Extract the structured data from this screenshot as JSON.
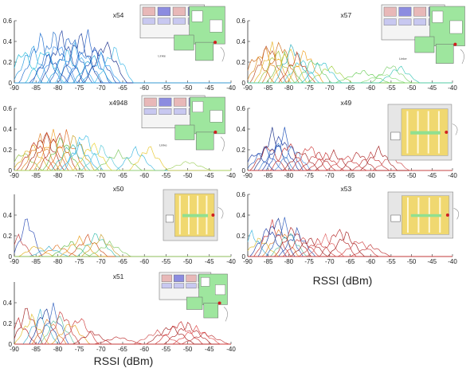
{
  "figure": {
    "xlabel_right": "RSSI (dBm)",
    "xlabel_left": "RSSI (dBm)"
  },
  "chart_data": [
    {
      "type": "line",
      "title": "x54",
      "xlim": [
        -90,
        -40
      ],
      "ylim": [
        0,
        0.6
      ],
      "x_ticks": [
        -90,
        -85,
        -80,
        -75,
        -70,
        -65,
        -60,
        -55,
        -50,
        -45,
        -40
      ],
      "y_ticks": [
        0,
        0.2,
        0.4,
        0.6
      ],
      "grid": false,
      "series": [
        {
          "peak": -88,
          "height": 0.36,
          "width": 2.0,
          "color": "#1fb8d8"
        },
        {
          "peak": -86,
          "height": 0.4,
          "width": 2.0,
          "color": "#2a9be0"
        },
        {
          "peak": -84,
          "height": 0.5,
          "width": 2.2,
          "color": "#1f6fd0"
        },
        {
          "peak": -83,
          "height": 0.38,
          "width": 2.0,
          "color": "#33c0e0"
        },
        {
          "peak": -82,
          "height": 0.3,
          "width": 2.0,
          "color": "#1850b8"
        },
        {
          "peak": -81,
          "height": 0.53,
          "width": 2.2,
          "color": "#2470cc"
        },
        {
          "peak": -80,
          "height": 0.45,
          "width": 2.0,
          "color": "#3a8ee8"
        },
        {
          "peak": -79,
          "height": 0.53,
          "width": 2.2,
          "color": "#1f40a0"
        },
        {
          "peak": -78,
          "height": 0.35,
          "width": 2.0,
          "color": "#26a8e0"
        },
        {
          "peak": -77,
          "height": 0.53,
          "width": 2.2,
          "color": "#1e5ec0"
        },
        {
          "peak": -76,
          "height": 0.4,
          "width": 2.0,
          "color": "#3fb0f0"
        },
        {
          "peak": -75,
          "height": 0.53,
          "width": 2.2,
          "color": "#1a3d9a"
        },
        {
          "peak": -74,
          "height": 0.35,
          "width": 2.0,
          "color": "#2f84dc"
        },
        {
          "peak": -73,
          "height": 0.52,
          "width": 2.2,
          "color": "#2060c8"
        },
        {
          "peak": -72,
          "height": 0.3,
          "width": 2.0,
          "color": "#1da0d8"
        },
        {
          "peak": -71,
          "height": 0.4,
          "width": 2.0,
          "color": "#1c48b0"
        },
        {
          "peak": -70,
          "height": 0.3,
          "width": 2.0,
          "color": "#30a0f0"
        },
        {
          "peak": -69,
          "height": 0.45,
          "width": 2.2,
          "color": "#1a2e8a"
        },
        {
          "peak": -67,
          "height": 0.38,
          "width": 2.0,
          "color": "#3fb8e8"
        }
      ]
    },
    {
      "type": "line",
      "title": "x57",
      "xlim": [
        -90,
        -40
      ],
      "ylim": [
        0,
        0.6
      ],
      "x_ticks": [
        -90,
        -85,
        -80,
        -75,
        -70,
        -65,
        -60,
        -55,
        -50,
        -45,
        -40
      ],
      "y_ticks": [
        0,
        0.2,
        0.4,
        0.6
      ],
      "grid": false,
      "series": [
        {
          "peak": -88,
          "height": 0.3,
          "width": 2.0,
          "color": "#c86414"
        },
        {
          "peak": -86,
          "height": 0.38,
          "width": 2.0,
          "color": "#e08a1a"
        },
        {
          "peak": -85,
          "height": 0.42,
          "width": 2.0,
          "color": "#b84a20"
        },
        {
          "peak": -84,
          "height": 0.4,
          "width": 2.0,
          "color": "#e8b020"
        },
        {
          "peak": -83,
          "height": 0.35,
          "width": 2.0,
          "color": "#a0c030"
        },
        {
          "peak": -82,
          "height": 0.45,
          "width": 2.0,
          "color": "#d07018"
        },
        {
          "peak": -81,
          "height": 0.3,
          "width": 2.0,
          "color": "#7fc04a"
        },
        {
          "peak": -80,
          "height": 0.38,
          "width": 2.0,
          "color": "#e0c030"
        },
        {
          "peak": -79,
          "height": 0.42,
          "width": 2.0,
          "color": "#2fb0c0"
        },
        {
          "peak": -78,
          "height": 0.3,
          "width": 2.0,
          "color": "#c84020"
        },
        {
          "peak": -77,
          "height": 0.26,
          "width": 2.0,
          "color": "#48c8d8"
        },
        {
          "peak": -76,
          "height": 0.35,
          "width": 2.0,
          "color": "#f0a020"
        },
        {
          "peak": -74,
          "height": 0.26,
          "width": 2.0,
          "color": "#60c870"
        },
        {
          "peak": -72,
          "height": 0.24,
          "width": 2.2,
          "color": "#30c0c8"
        },
        {
          "peak": -70,
          "height": 0.18,
          "width": 2.5,
          "color": "#a0d040"
        },
        {
          "peak": -62,
          "height": 0.13,
          "width": 3.0,
          "color": "#70d060"
        },
        {
          "peak": -57,
          "height": 0.1,
          "width": 2.5,
          "color": "#90e080"
        },
        {
          "peak": -55,
          "height": 0.2,
          "width": 2.2,
          "color": "#80d070"
        },
        {
          "peak": -53,
          "height": 0.18,
          "width": 2.2,
          "color": "#40c8b8"
        }
      ]
    },
    {
      "type": "line",
      "title": "x4948",
      "xlim": [
        -90,
        -40
      ],
      "ylim": [
        0,
        0.6
      ],
      "x_ticks": [
        -90,
        -85,
        -80,
        -75,
        -70,
        -65,
        -60,
        -55,
        -50,
        -45,
        -40
      ],
      "y_ticks": [
        0,
        0.2,
        0.4,
        0.6
      ],
      "grid": false,
      "series": [
        {
          "peak": -88,
          "height": 0.2,
          "width": 2.0,
          "color": "#90c040"
        },
        {
          "peak": -86,
          "height": 0.28,
          "width": 2.0,
          "color": "#e0b020"
        },
        {
          "peak": -85,
          "height": 0.32,
          "width": 2.0,
          "color": "#c03020"
        },
        {
          "peak": -84,
          "height": 0.36,
          "width": 2.0,
          "color": "#e08020"
        },
        {
          "peak": -83,
          "height": 0.42,
          "width": 2.0,
          "color": "#a02818"
        },
        {
          "peak": -82,
          "height": 0.42,
          "width": 2.0,
          "color": "#d05020"
        },
        {
          "peak": -81,
          "height": 0.4,
          "width": 2.0,
          "color": "#f0a028"
        },
        {
          "peak": -80,
          "height": 0.42,
          "width": 2.0,
          "color": "#b83a18"
        },
        {
          "peak": -79,
          "height": 0.36,
          "width": 2.0,
          "color": "#60b840"
        },
        {
          "peak": -78,
          "height": 0.4,
          "width": 2.0,
          "color": "#e06820"
        },
        {
          "peak": -77,
          "height": 0.3,
          "width": 2.0,
          "color": "#40c0b0"
        },
        {
          "peak": -76,
          "height": 0.38,
          "width": 2.0,
          "color": "#c8a020"
        },
        {
          "peak": -75,
          "height": 0.28,
          "width": 2.0,
          "color": "#30b0e0"
        },
        {
          "peak": -74,
          "height": 0.42,
          "width": 2.0,
          "color": "#40c0e8"
        },
        {
          "peak": -72,
          "height": 0.3,
          "width": 2.0,
          "color": "#e8d030"
        },
        {
          "peak": -70,
          "height": 0.26,
          "width": 2.0,
          "color": "#58c8d8"
        },
        {
          "peak": -66,
          "height": 0.2,
          "width": 2.5,
          "color": "#80c860"
        },
        {
          "peak": -62,
          "height": 0.24,
          "width": 2.0,
          "color": "#40b8e0"
        },
        {
          "peak": -59,
          "height": 0.26,
          "width": 2.0,
          "color": "#e8c830"
        },
        {
          "peak": -50,
          "height": 0.1,
          "width": 2.5,
          "color": "#a0d060"
        }
      ]
    },
    {
      "type": "line",
      "title": "x49",
      "xlim": [
        -90,
        -40
      ],
      "ylim": [
        0,
        0.6
      ],
      "x_ticks": [
        -90,
        -85,
        -80,
        -75,
        -70,
        -65,
        -60,
        -55,
        -50,
        -45,
        -40
      ],
      "y_ticks": [
        0,
        0.2,
        0.4,
        0.6
      ],
      "grid": false,
      "series": [
        {
          "peak": -88,
          "height": 0.2,
          "width": 2.0,
          "color": "#2040a8"
        },
        {
          "peak": -86,
          "height": 0.25,
          "width": 2.0,
          "color": "#3060c0"
        },
        {
          "peak": -85,
          "height": 0.28,
          "width": 2.0,
          "color": "#b02828"
        },
        {
          "peak": -84,
          "height": 0.42,
          "width": 2.0,
          "color": "#1a3088"
        },
        {
          "peak": -83,
          "height": 0.3,
          "width": 2.0,
          "color": "#4080d0"
        },
        {
          "peak": -82,
          "height": 0.38,
          "width": 2.0,
          "color": "#2038a0"
        },
        {
          "peak": -81,
          "height": 0.42,
          "width": 2.0,
          "color": "#1d50b8"
        },
        {
          "peak": -80,
          "height": 0.3,
          "width": 2.0,
          "color": "#c03030"
        },
        {
          "peak": -79,
          "height": 0.26,
          "width": 2.0,
          "color": "#5090e0"
        },
        {
          "peak": -77,
          "height": 0.22,
          "width": 2.0,
          "color": "#a02828"
        },
        {
          "peak": -75,
          "height": 0.28,
          "width": 2.0,
          "color": "#d04040"
        },
        {
          "peak": -73,
          "height": 0.2,
          "width": 2.0,
          "color": "#b83030"
        },
        {
          "peak": -71,
          "height": 0.18,
          "width": 2.0,
          "color": "#c83838"
        },
        {
          "peak": -69,
          "height": 0.2,
          "width": 2.0,
          "color": "#a82424"
        },
        {
          "peak": -66,
          "height": 0.16,
          "width": 2.2,
          "color": "#d04848"
        },
        {
          "peak": -63,
          "height": 0.2,
          "width": 2.0,
          "color": "#b02c2c"
        },
        {
          "peak": -60,
          "height": 0.18,
          "width": 2.0,
          "color": "#c03838"
        },
        {
          "peak": -58,
          "height": 0.24,
          "width": 2.0,
          "color": "#a02020"
        },
        {
          "peak": -55,
          "height": 0.16,
          "width": 2.0,
          "color": "#d05050"
        }
      ]
    },
    {
      "type": "line",
      "title": "x50",
      "xlim": [
        -90,
        -40
      ],
      "ylim": [
        0,
        0.6
      ],
      "x_ticks": [
        -90,
        -85,
        -80,
        -75,
        -70,
        -65,
        -60,
        -55,
        -50,
        -45,
        -40
      ],
      "y_ticks": [
        0,
        0.2,
        0.4
      ],
      "grid": false,
      "series": [
        {
          "peak": -89,
          "height": 0.22,
          "width": 1.5,
          "color": "#c04040"
        },
        {
          "peak": -87,
          "height": 0.42,
          "width": 1.5,
          "color": "#3050b8"
        },
        {
          "peak": -85,
          "height": 0.12,
          "width": 1.8,
          "color": "#e0b020"
        },
        {
          "peak": -82,
          "height": 0.1,
          "width": 2.0,
          "color": "#40b0d0"
        },
        {
          "peak": -80,
          "height": 0.12,
          "width": 2.0,
          "color": "#e07020"
        },
        {
          "peak": -77,
          "height": 0.16,
          "width": 2.0,
          "color": "#60b840"
        },
        {
          "peak": -75,
          "height": 0.2,
          "width": 2.0,
          "color": "#e8a020"
        },
        {
          "peak": -73,
          "height": 0.22,
          "width": 2.0,
          "color": "#d05020"
        },
        {
          "peak": -71,
          "height": 0.25,
          "width": 2.0,
          "color": "#40c0b0"
        },
        {
          "peak": -70,
          "height": 0.22,
          "width": 2.0,
          "color": "#c8a030"
        },
        {
          "peak": -68,
          "height": 0.15,
          "width": 2.2,
          "color": "#80c860"
        }
      ]
    },
    {
      "type": "line",
      "title": "x53",
      "xlim": [
        -90,
        -40
      ],
      "ylim": [
        0,
        0.6
      ],
      "x_ticks": [
        -90,
        -85,
        -80,
        -75,
        -70,
        -65,
        -60,
        -55,
        -50,
        -45,
        -40
      ],
      "y_ticks": [
        0,
        0.2,
        0.4,
        0.6
      ],
      "grid": false,
      "series": [
        {
          "peak": -89,
          "height": 0.26,
          "width": 1.8,
          "color": "#40b8e0"
        },
        {
          "peak": -87,
          "height": 0.2,
          "width": 2.0,
          "color": "#e0c030"
        },
        {
          "peak": -85,
          "height": 0.32,
          "width": 2.0,
          "color": "#2040a8"
        },
        {
          "peak": -84,
          "height": 0.36,
          "width": 2.0,
          "color": "#c83030"
        },
        {
          "peak": -83,
          "height": 0.42,
          "width": 2.0,
          "color": "#1c3c98"
        },
        {
          "peak": -82,
          "height": 0.3,
          "width": 2.0,
          "color": "#e08030"
        },
        {
          "peak": -81,
          "height": 0.38,
          "width": 2.0,
          "color": "#3060c0"
        },
        {
          "peak": -80,
          "height": 0.26,
          "width": 2.0,
          "color": "#60c0a0"
        },
        {
          "peak": -79,
          "height": 0.32,
          "width": 2.0,
          "color": "#b02828"
        },
        {
          "peak": -78,
          "height": 0.28,
          "width": 2.0,
          "color": "#2a50b0"
        },
        {
          "peak": -77,
          "height": 0.22,
          "width": 2.0,
          "color": "#d04040"
        },
        {
          "peak": -75,
          "height": 0.2,
          "width": 2.0,
          "color": "#a02424"
        },
        {
          "peak": -73,
          "height": 0.18,
          "width": 2.0,
          "color": "#c83838"
        },
        {
          "peak": -71,
          "height": 0.22,
          "width": 2.0,
          "color": "#e06060"
        },
        {
          "peak": -68,
          "height": 0.3,
          "width": 2.0,
          "color": "#b83030"
        },
        {
          "peak": -66,
          "height": 0.26,
          "width": 2.0,
          "color": "#a02020"
        },
        {
          "peak": -63,
          "height": 0.18,
          "width": 2.2,
          "color": "#d04848"
        },
        {
          "peak": -60,
          "height": 0.12,
          "width": 2.2,
          "color": "#c03838"
        }
      ]
    },
    {
      "type": "line",
      "title": "x51",
      "xlim": [
        -90,
        -40
      ],
      "ylim": [
        0,
        0.6
      ],
      "x_ticks": [
        -90,
        -85,
        -80,
        -75,
        -70,
        -65,
        -60,
        -55,
        -50,
        -45,
        -40
      ],
      "y_ticks": [
        0,
        0.2,
        0.4
      ],
      "grid": false,
      "series": [
        {
          "peak": -89,
          "height": 0.26,
          "width": 1.8,
          "color": "#c03030"
        },
        {
          "peak": -87,
          "height": 0.4,
          "width": 1.6,
          "color": "#a02020"
        },
        {
          "peak": -86,
          "height": 0.3,
          "width": 1.8,
          "color": "#e0c030"
        },
        {
          "peak": -84,
          "height": 0.34,
          "width": 1.8,
          "color": "#40b0d0"
        },
        {
          "peak": -83,
          "height": 0.4,
          "width": 1.6,
          "color": "#1c3c98"
        },
        {
          "peak": -82,
          "height": 0.28,
          "width": 1.8,
          "color": "#e08030"
        },
        {
          "peak": -81,
          "height": 0.4,
          "width": 1.6,
          "color": "#3060c0"
        },
        {
          "peak": -80,
          "height": 0.32,
          "width": 1.8,
          "color": "#60c0a0"
        },
        {
          "peak": -79,
          "height": 0.36,
          "width": 1.8,
          "color": "#c84040"
        },
        {
          "peak": -77,
          "height": 0.24,
          "width": 2.0,
          "color": "#e0a020"
        },
        {
          "peak": -75,
          "height": 0.3,
          "width": 2.0,
          "color": "#d04040"
        },
        {
          "peak": -72,
          "height": 0.14,
          "width": 2.0,
          "color": "#b02828"
        },
        {
          "peak": -66,
          "height": 0.08,
          "width": 2.5,
          "color": "#c03838"
        },
        {
          "peak": -57,
          "height": 0.14,
          "width": 2.5,
          "color": "#d05050"
        },
        {
          "peak": -54,
          "height": 0.2,
          "width": 2.5,
          "color": "#a02020"
        },
        {
          "peak": -52,
          "height": 0.24,
          "width": 2.5,
          "color": "#c83030"
        },
        {
          "peak": -50,
          "height": 0.22,
          "width": 2.5,
          "color": "#b02828"
        },
        {
          "peak": -48,
          "height": 0.18,
          "width": 2.5,
          "color": "#e04848"
        },
        {
          "peak": -46,
          "height": 0.12,
          "width": 2.5,
          "color": "#c03c3c"
        }
      ]
    }
  ],
  "floorplans": [
    {
      "style": "colorful",
      "color_fill": "#9ee69e",
      "accent": "#8c8ce0",
      "label": "Linke"
    },
    {
      "style": "colorful",
      "color_fill": "#9ee69e",
      "accent": "#8c8ce0",
      "label": "Linke"
    },
    {
      "style": "colorful",
      "color_fill": "#9ee69e",
      "accent": "#8c8ce0",
      "label": "Linke"
    },
    {
      "style": "yellow",
      "color_fill": "#f0d870",
      "accent": "#d0d0d0",
      "label": ""
    },
    {
      "style": "yellow",
      "color_fill": "#f0d870",
      "accent": "#d0d0d0",
      "label": ""
    },
    {
      "style": "yellow",
      "color_fill": "#f0d870",
      "accent": "#d0d0d0",
      "label": ""
    },
    {
      "style": "colorful",
      "color_fill": "#9ee69e",
      "accent": "#8c8ce0",
      "label": ""
    }
  ]
}
